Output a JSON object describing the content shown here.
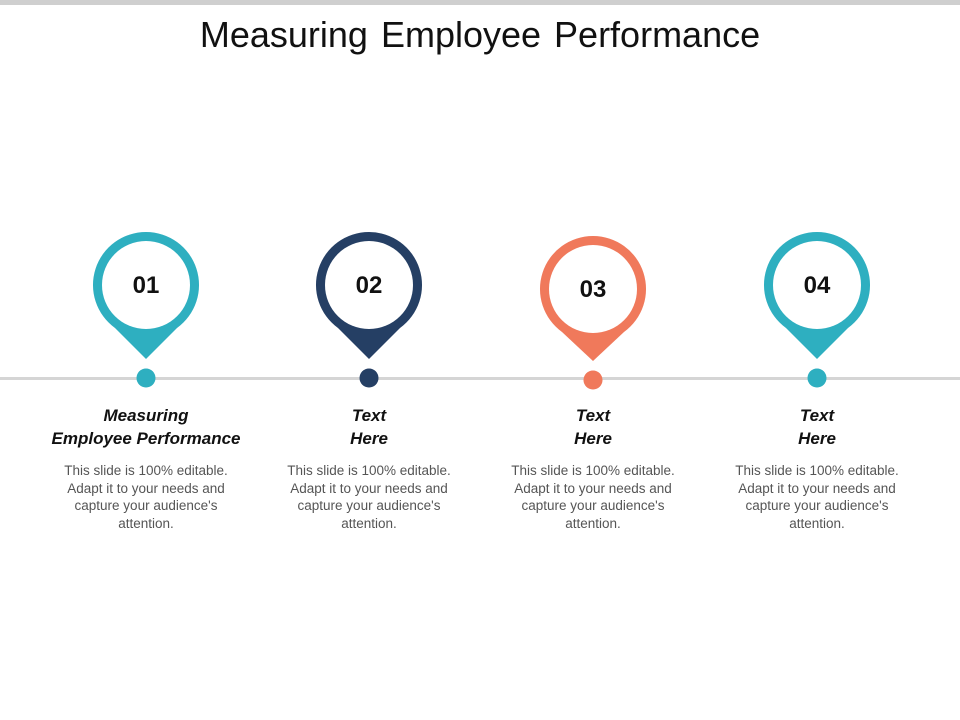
{
  "title": "Measuring Employee Performance",
  "steps": [
    {
      "number": "01",
      "heading_line1": "Measuring",
      "heading_line2": "Employee Performance",
      "description": "This slide is 100% editable. Adapt it to your needs and capture your audience's attention.",
      "color": "#2EAFC0"
    },
    {
      "number": "02",
      "heading_line1": "Text",
      "heading_line2": "Here",
      "description": "This slide is 100% editable. Adapt it to your needs and capture your audience's attention.",
      "color": "#253F64"
    },
    {
      "number": "03",
      "heading_line1": "Text",
      "heading_line2": "Here",
      "description": "This slide is 100% editable. Adapt it to your needs and capture your audience's attention.",
      "color": "#F0795B"
    },
    {
      "number": "04",
      "heading_line1": "Text",
      "heading_line2": "Here",
      "description": "This slide is 100% editable. Adapt it to your needs and capture your audience's attention.",
      "color": "#2EAFC0"
    }
  ],
  "timeline_color": "#D5D5D5"
}
